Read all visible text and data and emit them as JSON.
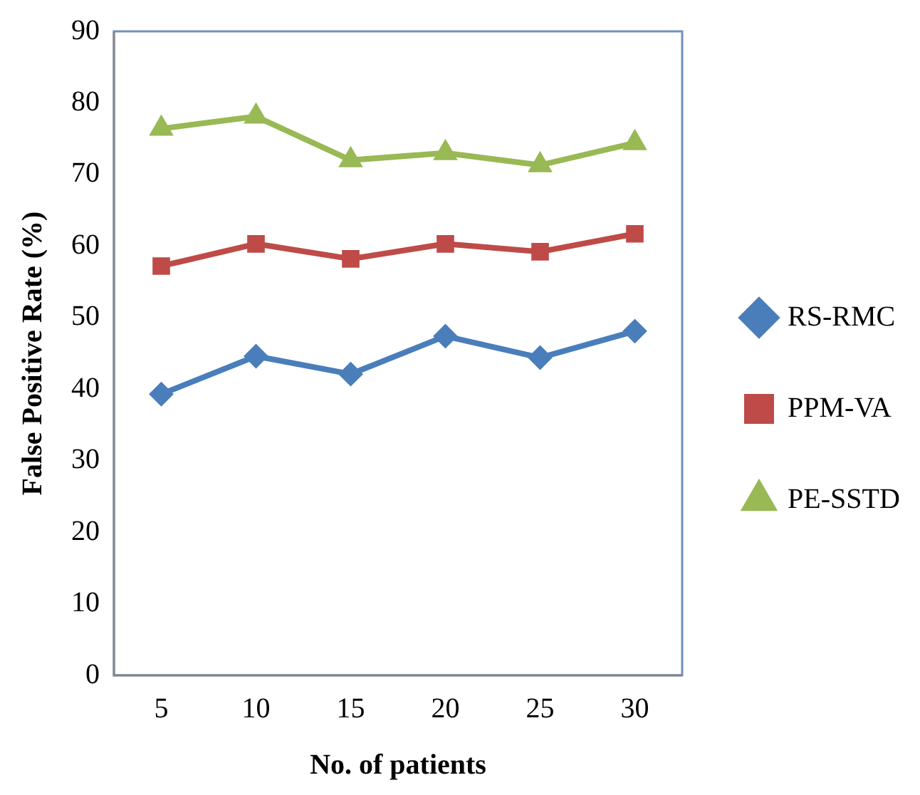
{
  "chart_data": {
    "type": "line",
    "xlabel": "No. of patients",
    "ylabel": "False Positive Rate (%)",
    "categories": [
      "5",
      "10",
      "15",
      "20",
      "25",
      "30"
    ],
    "series": [
      {
        "name": "RS-RMC",
        "color": "#4a7ebb",
        "marker": "diamond",
        "values": [
          39.3,
          44.6,
          42.1,
          47.4,
          44.4,
          48.1
        ]
      },
      {
        "name": "PPM-VA",
        "color": "#be4b48",
        "marker": "square",
        "values": [
          57.2,
          60.3,
          58.2,
          60.3,
          59.2,
          61.7
        ]
      },
      {
        "name": "PE-SSTD",
        "color": "#98b954",
        "marker": "triangle",
        "values": [
          76.4,
          78.1,
          72.0,
          73.0,
          71.3,
          74.4
        ]
      }
    ],
    "ylim": [
      0,
      90
    ],
    "yticks": [
      0,
      10,
      20,
      30,
      40,
      50,
      60,
      70,
      80,
      90
    ],
    "grid": false,
    "legend": "right"
  }
}
